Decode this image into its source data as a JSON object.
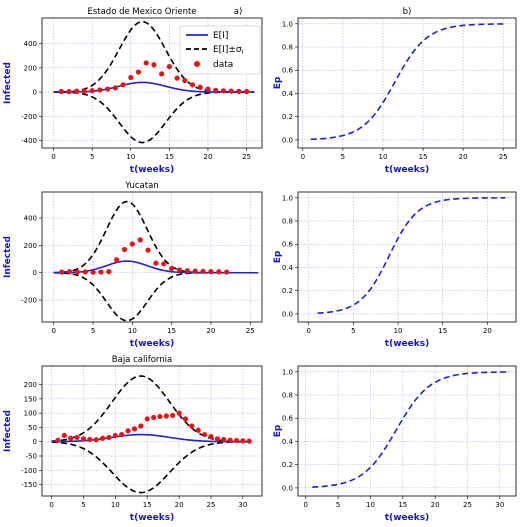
{
  "colors": {
    "expected": "#1f22d6",
    "band": "#000000",
    "data": "#ee1111",
    "ep": "#1f22d6",
    "grid": "#a0a0e0",
    "axis_label": "#1414d6"
  },
  "legend": {
    "expected": "E[I]",
    "band": "E[I]±σ",
    "band_sub": "I",
    "data": "data"
  },
  "chart_data": [
    {
      "type": "line",
      "title": "Estado de Mexico Oriente",
      "panel_letter": "a)",
      "xlabel": "t(weeks)",
      "ylabel": "Infected",
      "xlim": [
        -1.5,
        27
      ],
      "ylim": [
        -460,
        610
      ],
      "xticks": [
        0,
        5,
        10,
        15,
        20,
        25
      ],
      "yticks": [
        -400,
        -200,
        0,
        200,
        400
      ],
      "grid": true,
      "legend": "top-right",
      "curves": {
        "t0": 0,
        "t1": 26,
        "mu": 11.5,
        "sigma": 3.0,
        "mean_peak": 80,
        "band_peak": 580,
        "band_low": -415
      },
      "data_points": [
        [
          1,
          5
        ],
        [
          2,
          4
        ],
        [
          3,
          8
        ],
        [
          4,
          6
        ],
        [
          5,
          12
        ],
        [
          6,
          18
        ],
        [
          7,
          25
        ],
        [
          8,
          35
        ],
        [
          9,
          60
        ],
        [
          10,
          120
        ],
        [
          11,
          165
        ],
        [
          12,
          240
        ],
        [
          13,
          225
        ],
        [
          14,
          150
        ],
        [
          15,
          210
        ],
        [
          16,
          115
        ],
        [
          17,
          95
        ],
        [
          18,
          60
        ],
        [
          19,
          40
        ],
        [
          20,
          25
        ],
        [
          21,
          15
        ],
        [
          22,
          10
        ],
        [
          23,
          8
        ],
        [
          24,
          6
        ],
        [
          25,
          5
        ]
      ]
    },
    {
      "type": "line",
      "title": "",
      "panel_letter": "b)",
      "xlabel": "t(weeks)",
      "ylabel": "Ep",
      "xlim": [
        -0.6,
        26.6
      ],
      "ylim": [
        -0.07,
        1.05
      ],
      "xticks": [
        0,
        5,
        10,
        15,
        20,
        25
      ],
      "yticks": [
        0.0,
        0.2,
        0.4,
        0.6,
        0.8,
        1.0
      ],
      "grid": true,
      "curve": {
        "t0": 1,
        "t1": 25,
        "mu": 11.5,
        "s": 2.0
      }
    },
    {
      "type": "line",
      "title": "Yucatan",
      "panel_letter": "",
      "xlabel": "t(weeks)",
      "ylabel": "Infected",
      "xlim": [
        -1.5,
        26.5
      ],
      "ylim": [
        -360,
        590
      ],
      "xticks": [
        0,
        5,
        10,
        15,
        20,
        25
      ],
      "yticks": [
        -200,
        0,
        200,
        400
      ],
      "grid": true,
      "curves": {
        "t0": 0,
        "t1": 26,
        "mu": 9.3,
        "sigma": 2.6,
        "mean_peak": 85,
        "band_peak": 520,
        "band_low": -350
      },
      "data_points": [
        [
          1,
          5
        ],
        [
          2,
          8
        ],
        [
          3,
          5
        ],
        [
          4,
          6
        ],
        [
          5,
          4
        ],
        [
          6,
          5
        ],
        [
          7,
          8
        ],
        [
          8,
          95
        ],
        [
          9,
          170
        ],
        [
          10,
          210
        ],
        [
          11,
          240
        ],
        [
          12,
          165
        ],
        [
          13,
          70
        ],
        [
          14,
          65
        ],
        [
          15,
          30
        ],
        [
          16,
          20
        ],
        [
          17,
          15
        ],
        [
          18,
          12
        ],
        [
          19,
          10
        ],
        [
          20,
          8
        ],
        [
          21,
          7
        ],
        [
          22,
          5
        ]
      ]
    },
    {
      "type": "line",
      "title": "",
      "panel_letter": "",
      "xlabel": "t(weeks)",
      "ylabel": "Ep",
      "xlim": [
        -1.2,
        23.2
      ],
      "ylim": [
        -0.07,
        1.05
      ],
      "xticks": [
        0,
        5,
        10,
        15,
        20
      ],
      "yticks": [
        0.0,
        0.2,
        0.4,
        0.6,
        0.8,
        1.0
      ],
      "grid": true,
      "curve": {
        "t0": 1,
        "t1": 22,
        "mu": 9.0,
        "s": 1.6
      }
    },
    {
      "type": "line",
      "title": "Baja california",
      "panel_letter": "",
      "xlabel": "t(weeks)",
      "ylabel": "Infected",
      "xlim": [
        -1.5,
        33
      ],
      "ylim": [
        -190,
        265
      ],
      "xticks": [
        0,
        5,
        10,
        15,
        20,
        25,
        30
      ],
      "yticks": [
        -150,
        -100,
        -50,
        0,
        50,
        100,
        150,
        200
      ],
      "grid": true,
      "curves": {
        "t0": 0,
        "t1": 31,
        "mu": 14.0,
        "sigma": 4.5,
        "mean_peak": 25,
        "band_peak": 230,
        "band_low": -178
      },
      "data_points": [
        [
          1,
          5
        ],
        [
          2,
          22
        ],
        [
          3,
          12
        ],
        [
          4,
          15
        ],
        [
          5,
          10
        ],
        [
          6,
          8
        ],
        [
          7,
          7
        ],
        [
          8,
          12
        ],
        [
          9,
          15
        ],
        [
          10,
          22
        ],
        [
          11,
          25
        ],
        [
          12,
          38
        ],
        [
          13,
          45
        ],
        [
          14,
          55
        ],
        [
          15,
          80
        ],
        [
          16,
          85
        ],
        [
          17,
          88
        ],
        [
          18,
          90
        ],
        [
          19,
          92
        ],
        [
          20,
          100
        ],
        [
          21,
          80
        ],
        [
          22,
          55
        ],
        [
          23,
          40
        ],
        [
          24,
          25
        ],
        [
          25,
          18
        ],
        [
          26,
          10
        ],
        [
          27,
          8
        ],
        [
          28,
          5
        ],
        [
          29,
          4
        ],
        [
          30,
          3
        ],
        [
          31,
          2
        ]
      ]
    },
    {
      "type": "line",
      "title": "",
      "panel_letter": "",
      "xlabel": "t(weeks)",
      "ylabel": "Ep",
      "xlim": [
        -1.2,
        32.5
      ],
      "ylim": [
        -0.07,
        1.05
      ],
      "xticks": [
        0,
        5,
        10,
        15,
        20,
        25,
        30
      ],
      "yticks": [
        0.0,
        0.2,
        0.4,
        0.6,
        0.8,
        1.0
      ],
      "grid": true,
      "curve": {
        "t0": 1,
        "t1": 31,
        "mu": 14.0,
        "s": 2.6
      }
    }
  ]
}
